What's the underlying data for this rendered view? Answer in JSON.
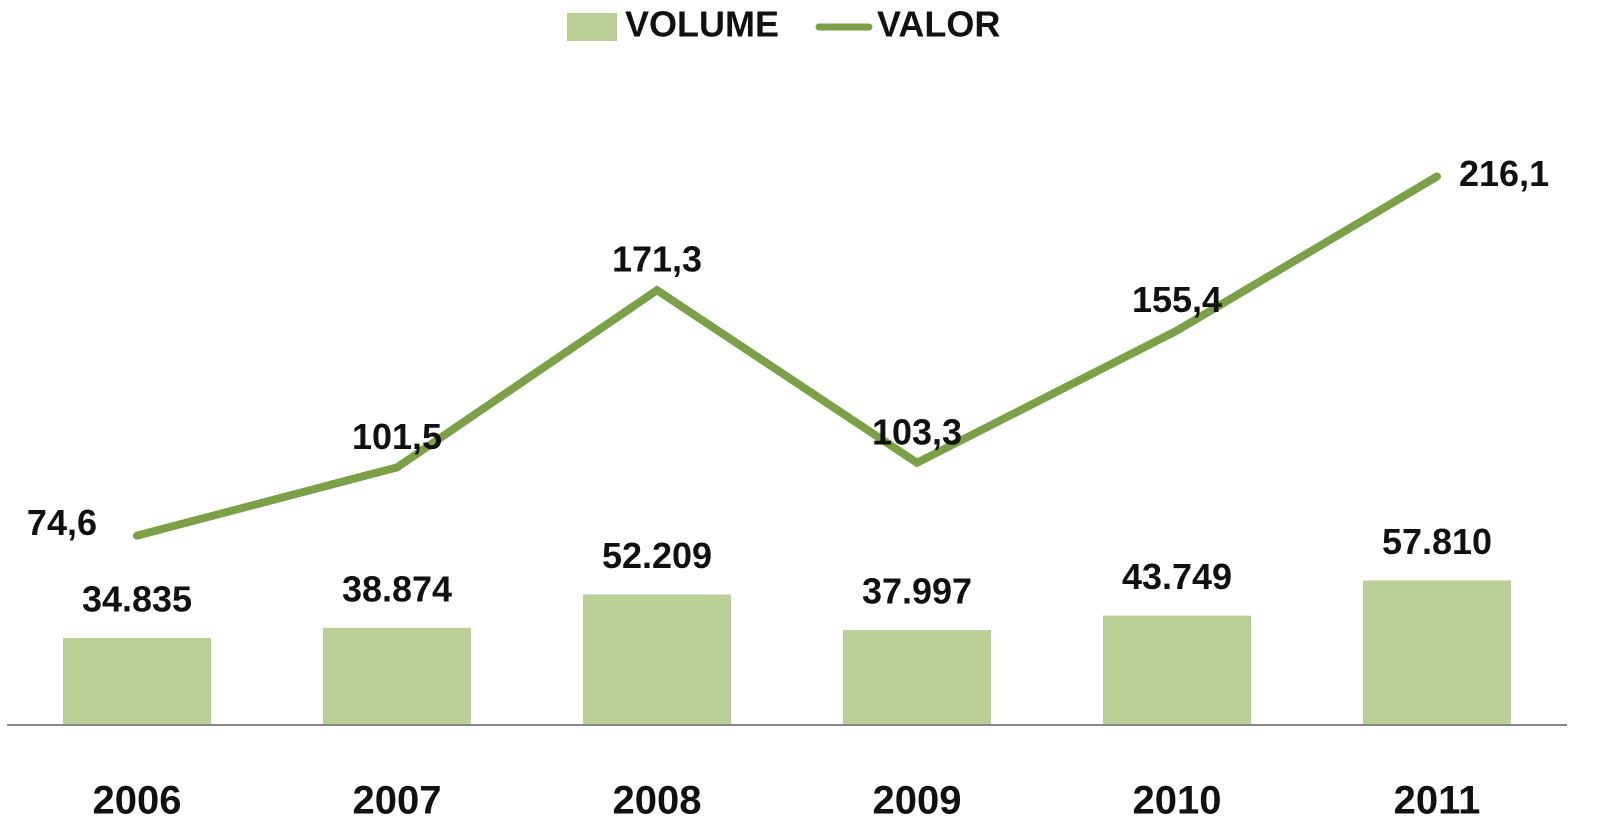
{
  "chart_data": {
    "type": "bar+line",
    "categories": [
      "2006",
      "2007",
      "2008",
      "2009",
      "2010",
      "2011"
    ],
    "series": [
      {
        "name": "VOLUME",
        "type": "bar",
        "color": "#b9cf96",
        "values": [
          34835,
          38874,
          52209,
          37997,
          43749,
          57810
        ],
        "value_labels": [
          "34.835",
          "38.874",
          "52.209",
          "37.997",
          "43.749",
          "57.810"
        ]
      },
      {
        "name": "VALOR",
        "type": "line",
        "axis": "y2",
        "color": "#7ba048",
        "values": [
          74.6,
          101.5,
          171.3,
          103.3,
          155.4,
          216.1
        ],
        "value_labels": [
          "74,6",
          "101,5",
          "171,3",
          "103,3",
          "155,4",
          "216,1"
        ]
      }
    ],
    "ylim": [
      0,
      266000
    ],
    "y2lim": [
      0,
      262
    ],
    "legend": "top"
  }
}
